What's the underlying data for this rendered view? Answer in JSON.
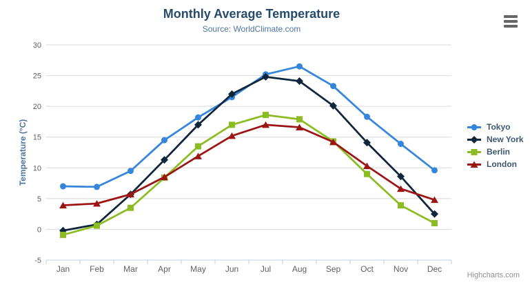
{
  "chart": {
    "title": "Monthly Average Temperature",
    "subtitle": "Source: WorldClimate.com",
    "credits": "Highcharts.com",
    "context_menu_icon": "hamburger-icon"
  },
  "colors": {
    "title": "#274b6d",
    "subtitle": "#4d759e",
    "axis_title": "#4d759e",
    "tick_label": "#606060",
    "grid_line": "#d8d8d8",
    "axis_line": "#c0d0e0",
    "legend_text": "#3e576f",
    "credits_text": "#909090",
    "context_button": "#666666"
  },
  "chart_data": {
    "type": "line",
    "title": "Monthly Average Temperature",
    "subtitle": "Source: WorldClimate.com",
    "xlabel": "",
    "ylabel": "Temperature (°C)",
    "ylim": [
      -5,
      30
    ],
    "ytick_interval": 5,
    "yticks": [
      -5,
      0,
      5,
      10,
      15,
      20,
      25,
      30
    ],
    "grid": true,
    "legend_position": "right",
    "categories": [
      "Jan",
      "Feb",
      "Mar",
      "Apr",
      "May",
      "Jun",
      "Jul",
      "Aug",
      "Sep",
      "Oct",
      "Nov",
      "Dec"
    ],
    "series": [
      {
        "name": "Tokyo",
        "color": "#3585db",
        "marker": "circle",
        "values": [
          7.0,
          6.9,
          9.5,
          14.5,
          18.2,
          21.5,
          25.2,
          26.5,
          23.3,
          18.3,
          13.9,
          9.6
        ]
      },
      {
        "name": "New York",
        "color": "#10263c",
        "marker": "diamond",
        "values": [
          -0.2,
          0.8,
          5.7,
          11.3,
          17.0,
          22.0,
          24.8,
          24.1,
          20.1,
          14.1,
          8.6,
          2.5
        ]
      },
      {
        "name": "Berlin",
        "color": "#8bbc21",
        "marker": "square",
        "values": [
          -0.9,
          0.6,
          3.5,
          8.4,
          13.5,
          17.0,
          18.6,
          17.9,
          14.3,
          9.0,
          3.9,
          1.0
        ]
      },
      {
        "name": "London",
        "color": "#9c1515",
        "marker": "triangle",
        "values": [
          3.9,
          4.2,
          5.7,
          8.5,
          11.9,
          15.2,
          17.0,
          16.6,
          14.2,
          10.3,
          6.6,
          4.8
        ]
      }
    ]
  }
}
